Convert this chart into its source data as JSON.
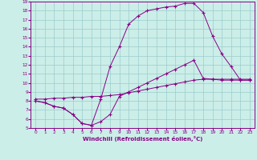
{
  "xlabel": "Windchill (Refroidissement éolien,°C)",
  "xlim": [
    -0.5,
    23.5
  ],
  "ylim": [
    5,
    19
  ],
  "xticks": [
    0,
    1,
    2,
    3,
    4,
    5,
    6,
    7,
    8,
    9,
    10,
    11,
    12,
    13,
    14,
    15,
    16,
    17,
    18,
    19,
    20,
    21,
    22,
    23
  ],
  "yticks": [
    5,
    6,
    7,
    8,
    9,
    10,
    11,
    12,
    13,
    14,
    15,
    16,
    17,
    18,
    19
  ],
  "bg_color": "#cceee8",
  "line_color": "#880088",
  "grid_color": "#99cccc",
  "line1_x": [
    0,
    1,
    2,
    3,
    4,
    5,
    6,
    7,
    8,
    9,
    10,
    11,
    12,
    13,
    14,
    15,
    16,
    17,
    18,
    19,
    20,
    21,
    22,
    23
  ],
  "line1_y": [
    8.0,
    7.8,
    7.4,
    7.2,
    6.5,
    5.5,
    5.3,
    5.7,
    6.5,
    8.5,
    9.0,
    9.5,
    10.0,
    10.5,
    11.0,
    11.5,
    12.0,
    12.5,
    10.5,
    10.4,
    10.3,
    10.3,
    10.3,
    10.3
  ],
  "line2_x": [
    0,
    1,
    2,
    3,
    4,
    5,
    6,
    7,
    8,
    9,
    10,
    11,
    12,
    13,
    14,
    15,
    16,
    17,
    18,
    19,
    20,
    21,
    22,
    23
  ],
  "line2_y": [
    8.2,
    8.2,
    8.3,
    8.3,
    8.4,
    8.4,
    8.5,
    8.5,
    8.6,
    8.7,
    8.9,
    9.1,
    9.3,
    9.5,
    9.7,
    9.9,
    10.1,
    10.3,
    10.4,
    10.4,
    10.4,
    10.4,
    10.4,
    10.4
  ],
  "line3_x": [
    0,
    1,
    2,
    3,
    4,
    5,
    6,
    7,
    8,
    9,
    10,
    11,
    12,
    13,
    14,
    15,
    16,
    17,
    18,
    19,
    20,
    21,
    22,
    23
  ],
  "line3_y": [
    8.0,
    7.8,
    7.4,
    7.2,
    6.5,
    5.5,
    5.3,
    8.2,
    11.8,
    14.0,
    16.5,
    17.4,
    18.0,
    18.2,
    18.4,
    18.5,
    18.8,
    18.8,
    17.8,
    15.2,
    13.2,
    11.8,
    10.3,
    10.3
  ]
}
